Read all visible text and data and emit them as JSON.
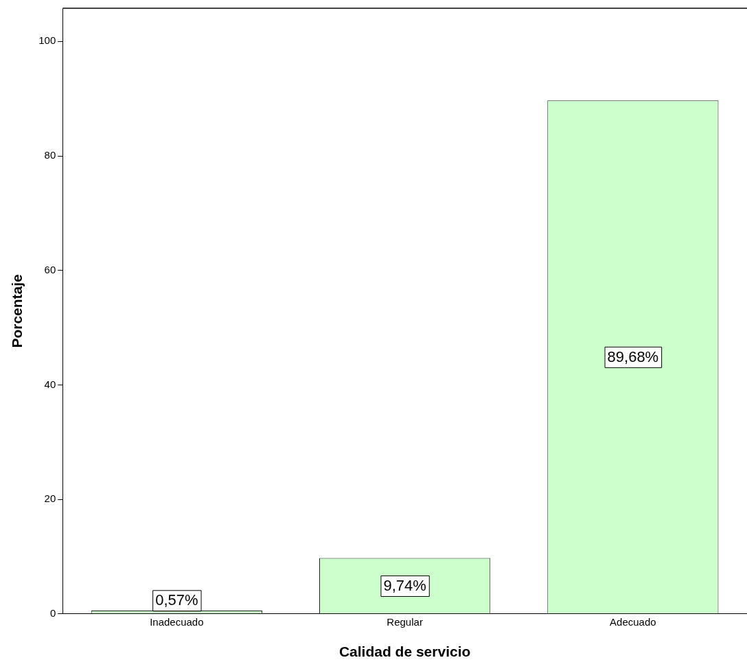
{
  "chart_data": {
    "type": "bar",
    "xlabel": "Calidad de servicio",
    "ylabel": "Porcentaje",
    "categories": [
      "Inadecuado",
      "Regular",
      "Adecuado"
    ],
    "values": [
      0.57,
      9.74,
      89.68
    ],
    "color": "#ccffcc",
    "value_labels": [
      "0,57%",
      "9,74%",
      "89,68%"
    ],
    "ylim": [
      0,
      105.8
    ],
    "yticks": [
      0,
      20,
      40,
      60,
      80,
      100
    ],
    "grid": false,
    "legend": false
  }
}
